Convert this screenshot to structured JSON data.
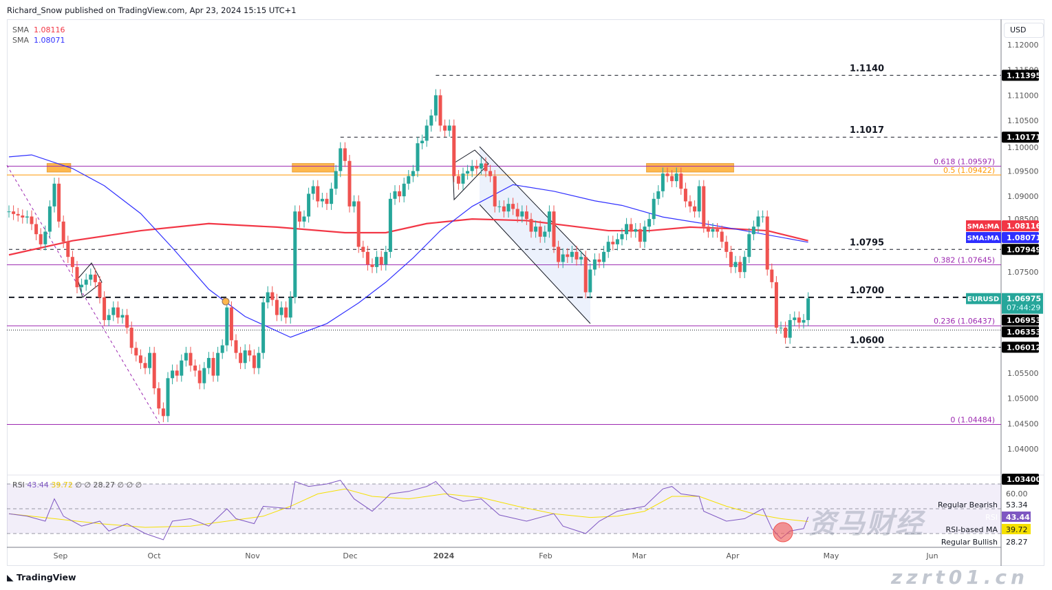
{
  "header": {
    "published": "Richard_Snow published on TradingView.com, Apr 23, 2024 15:15 UTC+1"
  },
  "legend": {
    "sma1_label": "SMA",
    "sma1_value": "1.08116",
    "sma2_label": "SMA",
    "sma2_value": "1.08071"
  },
  "rsi_legend": {
    "label": "RSI",
    "rsi": "43.44",
    "ma": "39.72",
    "extras": "∅ ∅ 28.27 ∅ ∅ ∅"
  },
  "currency": "USD",
  "branding": "TradingView",
  "watermark": {
    "line1": "资马财经",
    "line2": "zzrt01.cn"
  },
  "colors": {
    "up": "#26a69a",
    "down": "#ef5350",
    "sma200": "#f23645",
    "sma50": "#2f2fff",
    "fib": "#9c27b0",
    "fib_half": "#ff9800",
    "rsi": "#7e57c2",
    "rsi_ma": "#f5e000",
    "zone": "#ffb74d"
  },
  "chart_data": {
    "type": "candlestick",
    "symbol": "EURUSD",
    "timeframe": "daily",
    "x_ticks": [
      "Sep",
      "Oct",
      "Nov",
      "Dec",
      "2024",
      "Feb",
      "Mar",
      "Apr",
      "May",
      "Jun"
    ],
    "y_ticks": [
      "1.12000",
      "1.11500",
      "1.11000",
      "1.10500",
      "1.10000",
      "1.09500",
      "1.09000",
      "1.08500",
      "1.07500",
      "1.05500",
      "1.05000",
      "1.04500",
      "1.04000"
    ],
    "ylim": [
      1.0325,
      1.1235
    ],
    "closes": [
      1.087,
      1.0865,
      1.0862,
      1.0858,
      1.086,
      1.0845,
      1.0825,
      1.0805,
      1.083,
      1.088,
      1.0925,
      1.085,
      1.081,
      1.078,
      1.076,
      1.072,
      1.0725,
      1.0735,
      1.0745,
      1.073,
      1.07,
      1.0655,
      1.0665,
      1.068,
      1.066,
      1.0665,
      1.064,
      1.06,
      1.0585,
      1.057,
      1.056,
      1.059,
      1.052,
      1.048,
      1.0465,
      1.054,
      1.0555,
      1.0545,
      1.0575,
      1.059,
      1.0565,
      1.0555,
      1.053,
      1.056,
      1.058,
      1.0545,
      1.059,
      1.0605,
      1.068,
      1.0615,
      1.059,
      1.057,
      1.0595,
      1.0585,
      1.056,
      1.059,
      1.069,
      1.071,
      1.0695,
      1.0665,
      1.068,
      1.066,
      1.07,
      1.087,
      1.085,
      1.086,
      1.0905,
      1.092,
      1.089,
      1.0895,
      1.0885,
      1.0915,
      1.095,
      1.0995,
      1.097,
      1.088,
      1.089,
      1.08,
      1.079,
      1.0765,
      1.076,
      1.078,
      1.0765,
      1.079,
      1.0895,
      1.091,
      1.09,
      1.0925,
      1.094,
      1.095,
      1.1005,
      1.101,
      1.104,
      1.106,
      1.11,
      1.104,
      1.103,
      1.104,
      1.094,
      1.0925,
      1.0945,
      1.095,
      1.096,
      1.0955,
      1.0965,
      1.095,
      1.094,
      1.088,
      1.088,
      1.087,
      1.0885,
      1.0875,
      1.086,
      1.087,
      1.0855,
      1.083,
      1.084,
      1.082,
      1.083,
      1.087,
      1.08,
      1.077,
      1.0785,
      1.078,
      1.079,
      1.0775,
      1.078,
      1.071,
      1.0755,
      1.0775,
      1.077,
      1.079,
      1.081,
      1.0805,
      1.0815,
      1.0825,
      1.0845,
      1.083,
      1.0835,
      1.081,
      1.084,
      1.0855,
      1.0895,
      1.091,
      1.0945,
      1.094,
      1.093,
      1.0945,
      1.0915,
      1.089,
      1.088,
      1.087,
      1.092,
      1.084,
      1.083,
      1.0835,
      1.083,
      1.081,
      1.079,
      1.076,
      1.077,
      1.075,
      1.078,
      1.0825,
      1.084,
      1.086,
      1.086,
      1.0755,
      1.073,
      1.064,
      1.064,
      1.062,
      1.0655,
      1.066,
      1.065,
      1.0655,
      1.0698
    ],
    "sma_long": {
      "label": "SMA:MA",
      "value": "1.08116",
      "points": [
        [
          0,
          1.0784
        ],
        [
          14,
          1.0812
        ],
        [
          29,
          1.0832
        ],
        [
          44,
          1.0846
        ],
        [
          59,
          1.0839
        ],
        [
          74,
          1.0828
        ],
        [
          83,
          1.0828
        ],
        [
          92,
          1.0846
        ],
        [
          102,
          1.0855
        ],
        [
          114,
          1.0852
        ],
        [
          123,
          1.0842
        ],
        [
          132,
          1.0832
        ],
        [
          141,
          1.0832
        ],
        [
          150,
          1.0839
        ],
        [
          159,
          1.0836
        ],
        [
          167,
          1.0832
        ],
        [
          176,
          1.0812
        ]
      ]
    },
    "sma_short": {
      "label": "SMA:MA",
      "value": "1.08071",
      "points": [
        [
          0,
          1.0978
        ],
        [
          5,
          1.0982
        ],
        [
          14,
          1.0955
        ],
        [
          21,
          1.0921
        ],
        [
          29,
          1.0866
        ],
        [
          36,
          1.0798
        ],
        [
          44,
          1.0716
        ],
        [
          52,
          1.0662
        ],
        [
          62,
          1.0621
        ],
        [
          70,
          1.0648
        ],
        [
          77,
          1.0689
        ],
        [
          83,
          1.073
        ],
        [
          89,
          1.0778
        ],
        [
          95,
          1.0832
        ],
        [
          102,
          1.088
        ],
        [
          111,
          1.0923
        ],
        [
          120,
          1.091
        ],
        [
          129,
          1.0891
        ],
        [
          135,
          1.0882
        ],
        [
          144,
          1.0859
        ],
        [
          153,
          1.0846
        ],
        [
          162,
          1.0832
        ],
        [
          176,
          1.0809
        ]
      ]
    },
    "levels": [
      {
        "label": "1.1140",
        "price": 1.11395,
        "tag": "1.11395",
        "style": "dashed",
        "from_index": 94
      },
      {
        "label": "1.1017",
        "price": 1.10171,
        "tag": "1.10171",
        "style": "dashed",
        "from_index": 73
      },
      {
        "label": "1.0795",
        "price": 1.07949,
        "tag": "1.07949",
        "style": "dashed",
        "from_index": 0
      },
      {
        "label": "1.0700",
        "price": 1.07,
        "tag": "",
        "style": "thick-dashed",
        "from_index": 0
      },
      {
        "label": "1.0600",
        "price": 1.06012,
        "tag": "1.06012",
        "style": "dashed",
        "from_index": 171
      }
    ],
    "fib": [
      {
        "label": "0.618 (1.09597)",
        "price": 1.09597
      },
      {
        "label": "0.5 (1.09422)",
        "price": 1.09422
      },
      {
        "label": "0.382 (1.07645)",
        "price": 1.07645
      },
      {
        "label": "0.236 (1.06437)",
        "price": 1.06437
      },
      {
        "label": "0 (1.04484)",
        "price": 1.04484
      }
    ],
    "price_tags": [
      {
        "text": "1.06953",
        "price": 1.06953
      },
      {
        "text": "1.06353",
        "price": 1.06353
      },
      {
        "text": "1.03400",
        "price": 1.034
      }
    ],
    "last": {
      "symbol": "EURUSD",
      "price": "1.06975",
      "countdown": "07:44:29",
      "value": 1.06975
    },
    "rsi": {
      "levels": [
        70,
        50,
        30
      ],
      "axis_label": "60.00",
      "tags": [
        {
          "label": "Regular Bearish",
          "value": "53.34"
        },
        {
          "label": "RSI",
          "value": "43.44"
        },
        {
          "label": "RSI-based MA",
          "value": "39.72"
        },
        {
          "label": "Regular Bullish",
          "value": "28.27"
        }
      ],
      "rsi_points": [
        [
          0,
          46
        ],
        [
          4,
          44
        ],
        [
          8,
          40
        ],
        [
          10,
          58
        ],
        [
          12,
          44
        ],
        [
          16,
          36
        ],
        [
          20,
          40
        ],
        [
          22,
          32
        ],
        [
          26,
          38
        ],
        [
          30,
          30
        ],
        [
          34,
          25
        ],
        [
          36,
          40
        ],
        [
          40,
          42
        ],
        [
          44,
          36
        ],
        [
          48,
          50
        ],
        [
          50,
          42
        ],
        [
          54,
          38
        ],
        [
          56,
          52
        ],
        [
          62,
          50
        ],
        [
          63,
          72
        ],
        [
          66,
          68
        ],
        [
          70,
          70
        ],
        [
          73,
          73
        ],
        [
          76,
          58
        ],
        [
          80,
          48
        ],
        [
          84,
          62
        ],
        [
          88,
          64
        ],
        [
          92,
          68
        ],
        [
          94,
          72
        ],
        [
          97,
          60
        ],
        [
          100,
          56
        ],
        [
          104,
          58
        ],
        [
          108,
          45
        ],
        [
          114,
          40
        ],
        [
          120,
          46
        ],
        [
          122,
          36
        ],
        [
          127,
          30
        ],
        [
          130,
          40
        ],
        [
          134,
          48
        ],
        [
          140,
          52
        ],
        [
          144,
          66
        ],
        [
          146,
          68
        ],
        [
          148,
          62
        ],
        [
          152,
          60
        ],
        [
          153,
          48
        ],
        [
          158,
          40
        ],
        [
          162,
          42
        ],
        [
          166,
          50
        ],
        [
          168,
          34
        ],
        [
          170,
          26
        ],
        [
          172,
          32
        ],
        [
          175,
          34
        ],
        [
          176,
          43.44
        ]
      ],
      "ma_points": [
        [
          0,
          46
        ],
        [
          10,
          42
        ],
        [
          20,
          38
        ],
        [
          30,
          35
        ],
        [
          40,
          36
        ],
        [
          50,
          41
        ],
        [
          56,
          44
        ],
        [
          62,
          52
        ],
        [
          68,
          62
        ],
        [
          74,
          66
        ],
        [
          80,
          60
        ],
        [
          88,
          58
        ],
        [
          96,
          62
        ],
        [
          104,
          59
        ],
        [
          112,
          52
        ],
        [
          120,
          46
        ],
        [
          128,
          43
        ],
        [
          134,
          44
        ],
        [
          140,
          48
        ],
        [
          146,
          60
        ],
        [
          152,
          60
        ],
        [
          158,
          52
        ],
        [
          164,
          46
        ],
        [
          170,
          42
        ],
        [
          176,
          39.72
        ]
      ]
    },
    "zones": [
      {
        "from_index": 9,
        "to_index": 13,
        "price_top": 1.0965,
        "price_bottom": 1.0948
      },
      {
        "from_index": 63,
        "to_index": 71,
        "price_top": 1.0965,
        "price_bottom": 1.0948
      },
      {
        "from_index": 141,
        "to_index": 159,
        "price_top": 1.0965,
        "price_bottom": 1.0948
      }
    ]
  }
}
